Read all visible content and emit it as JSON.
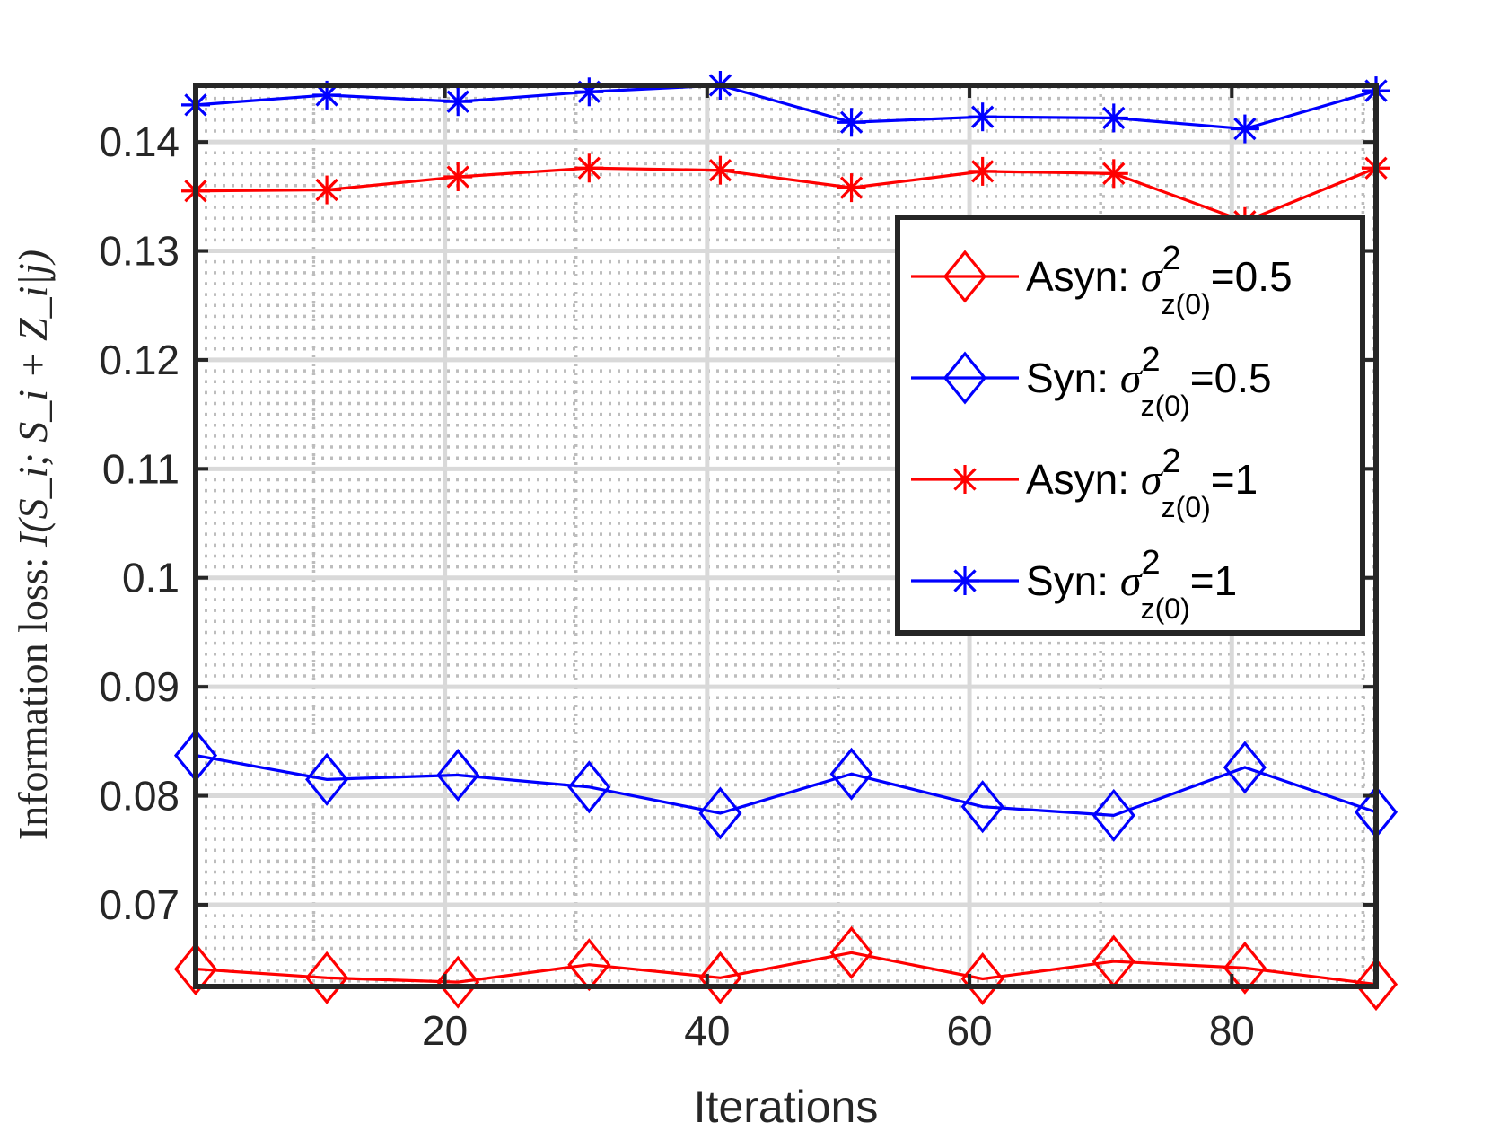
{
  "chart_data": {
    "type": "line",
    "title": "",
    "xlabel": "Iterations",
    "ylabel_prefix": "Information loss: ",
    "ylabel_math": "I(S_i; S_i + Z_i|j)",
    "x": [
      1,
      11,
      21,
      31,
      41,
      51,
      61,
      71,
      81,
      91
    ],
    "xlim": [
      1,
      91
    ],
    "ylim": [
      0.0625,
      0.1452
    ],
    "xticks": [
      20,
      40,
      60,
      80
    ],
    "xtick_labels": [
      "20",
      "40",
      "60",
      "80"
    ],
    "yticks": [
      0.07,
      0.08,
      0.09,
      0.1,
      0.11,
      0.12,
      0.13,
      0.14
    ],
    "ytick_labels": [
      "0.07",
      "0.08",
      "0.09",
      "0.1",
      "0.11",
      "0.12",
      "0.13",
      "0.14"
    ],
    "grid": "major solid gray, minor dotted",
    "legend_position": "top-right",
    "series": [
      {
        "name": "Asyn: σ²z(0)=0.5",
        "legend_prefix": "Asyn: ",
        "legend_sigma": "σ",
        "legend_sup": "2",
        "legend_sub": "z(0)",
        "legend_suffix": "=0.5",
        "color": "#ff0000",
        "marker": "diamond",
        "values": [
          0.0641,
          0.0633,
          0.0629,
          0.0645,
          0.0633,
          0.0656,
          0.0632,
          0.0648,
          0.0642,
          0.0627
        ]
      },
      {
        "name": "Syn: σ²z(0)=0.5",
        "legend_prefix": "Syn: ",
        "legend_sigma": "σ",
        "legend_sup": "2",
        "legend_sub": "z(0)",
        "legend_suffix": "=0.5",
        "color": "#0000ff",
        "marker": "diamond",
        "values": [
          0.0837,
          0.0815,
          0.0819,
          0.0808,
          0.0784,
          0.082,
          0.079,
          0.0782,
          0.0826,
          0.0785
        ]
      },
      {
        "name": "Asyn: σ²z(0)=1",
        "legend_prefix": "Asyn: ",
        "legend_sigma": "σ",
        "legend_sup": "2",
        "legend_sub": "z(0)",
        "legend_suffix": "=1",
        "color": "#ff0000",
        "marker": "asterisk",
        "values": [
          0.1355,
          0.1356,
          0.1368,
          0.1376,
          0.1374,
          0.1358,
          0.1373,
          0.1371,
          0.1327,
          0.1376
        ]
      },
      {
        "name": "Syn: σ²z(0)=1",
        "legend_prefix": "Syn: ",
        "legend_sigma": "σ",
        "legend_sup": "2",
        "legend_sub": "z(0)",
        "legend_suffix": "=1",
        "color": "#0000ff",
        "marker": "asterisk",
        "values": [
          0.1434,
          0.1443,
          0.1437,
          0.1446,
          0.1452,
          0.1418,
          0.1423,
          0.1422,
          0.1412,
          0.1447
        ]
      }
    ]
  }
}
